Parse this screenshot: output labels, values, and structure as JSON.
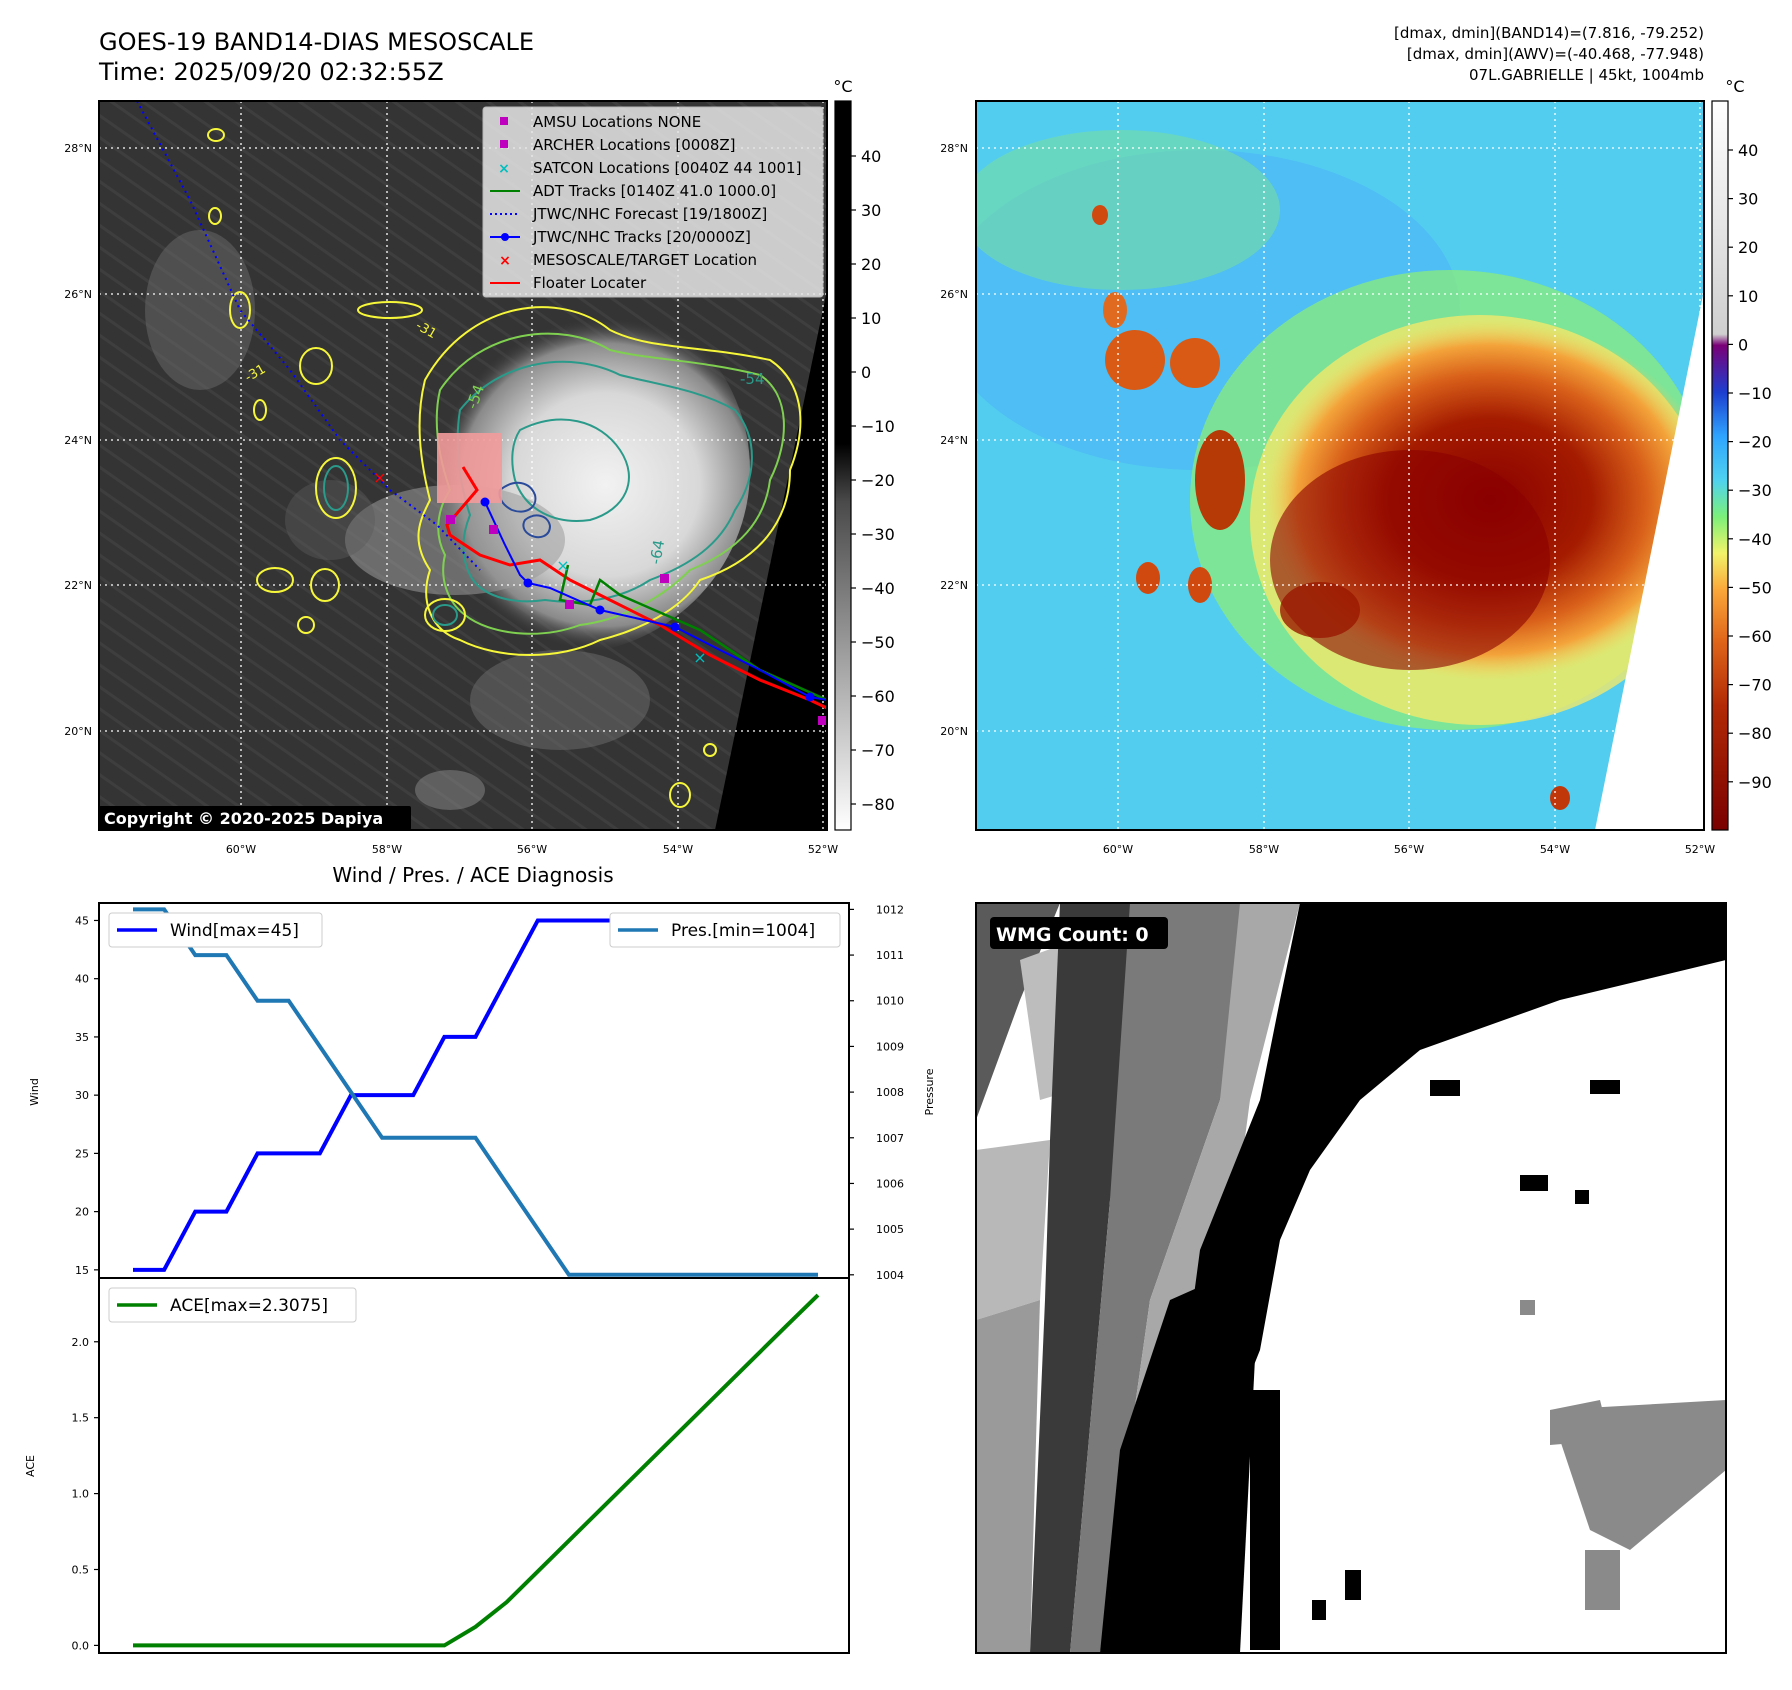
{
  "header": {
    "title": "GOES-19 BAND14-DIAS MESOSCALE",
    "time": "Time: 2025/09/20 02:32:55Z",
    "stats": [
      "[dmax, dmin](BAND14)=(7.816, -79.252)",
      "[dmax, dmin](AWV)=(-40.468, -77.948)",
      "07L.GABRIELLE | 45kt, 1004mb"
    ]
  },
  "map": {
    "lat_ticks": [
      "28°N",
      "26°N",
      "24°N",
      "22°N",
      "20°N"
    ],
    "lon_ticks": [
      "60°W",
      "58°W",
      "56°W",
      "54°W",
      "52°W"
    ],
    "copyright": "Copyright © 2020-2025 Dapiya",
    "legend": [
      {
        "label": "AMSU Locations NONE",
        "symbol": "square",
        "color": "#bf00bf"
      },
      {
        "label": "ARCHER Locations [0008Z]",
        "symbol": "square",
        "color": "#bf00bf"
      },
      {
        "label": "SATCON Locations [0040Z 44 1001]",
        "symbol": "x",
        "color": "#00bfbf"
      },
      {
        "label": "ADT Tracks [0140Z 41.0 1000.0]",
        "symbol": "line",
        "color": "#008000"
      },
      {
        "label": "JTWC/NHC Forecast [19/1800Z]",
        "symbol": "dotted",
        "color": "#0000ff"
      },
      {
        "label": "JTWC/NHC Tracks [20/0000Z]",
        "symbol": "line-dot",
        "color": "#0000ff"
      },
      {
        "label": "MESOSCALE/TARGET Location",
        "symbol": "x",
        "color": "#ff0000"
      },
      {
        "label": "Floater Locater",
        "symbol": "line",
        "color": "#ff0000"
      }
    ],
    "contour_labels": [
      "-54",
      "-54",
      "-64",
      "-31",
      "-31"
    ],
    "colorbar_gray": {
      "unit": "°C",
      "ticks": [
        "40",
        "30",
        "20",
        "10",
        "0",
        "−10",
        "−20",
        "−30",
        "−40",
        "−50",
        "−60",
        "−70",
        "−80"
      ]
    },
    "colorbar_color": {
      "unit": "°C",
      "ticks": [
        "40",
        "30",
        "20",
        "10",
        "0",
        "−10",
        "−20",
        "−30",
        "−40",
        "−50",
        "−60",
        "−70",
        "−80",
        "−90"
      ]
    }
  },
  "wmg": {
    "label": "WMG Count: 0"
  },
  "chart_data": [
    {
      "type": "line",
      "title": "Wind / Pres. / ACE Diagnosis",
      "ylabel": "Wind",
      "y2label": "Pressure",
      "ylim": [
        14.3,
        46.5
      ],
      "y2lim": [
        1003.93,
        1012.14
      ],
      "yticks": [
        15,
        20,
        25,
        30,
        35,
        40,
        45
      ],
      "y2ticks": [
        1004,
        1005,
        1006,
        1007,
        1008,
        1009,
        1010,
        1011,
        1012
      ],
      "x": [
        0,
        1,
        2,
        3,
        4,
        5,
        6,
        7,
        8,
        9,
        10,
        11,
        12,
        13,
        14,
        15,
        16,
        17,
        18,
        19,
        20,
        21,
        22
      ],
      "series": [
        {
          "name": "Wind[max=45]",
          "color": "#0000ff",
          "axis": "left",
          "values": [
            15,
            15,
            20,
            20,
            25,
            25,
            25,
            30,
            30,
            30,
            35,
            35,
            40,
            45,
            45,
            45,
            45,
            45,
            45,
            45,
            45,
            45,
            45
          ]
        },
        {
          "name": "Pres.[min=1004]",
          "color": "#1f77b4",
          "axis": "right",
          "values": [
            1012,
            1012,
            1011,
            1011,
            1010,
            1010,
            1009,
            1008,
            1007,
            1007,
            1007,
            1007,
            1006,
            1005,
            1004,
            1004,
            1004,
            1004,
            1004,
            1004,
            1004,
            1004,
            1004
          ]
        }
      ]
    },
    {
      "type": "line",
      "title": "",
      "ylabel": "ACE",
      "ylim": [
        -0.05,
        2.42
      ],
      "yticks": [
        "0.0",
        "0.5",
        "1.0",
        "1.5",
        "2.0"
      ],
      "x": [
        0,
        1,
        2,
        3,
        4,
        5,
        6,
        7,
        8,
        9,
        10,
        11,
        12,
        13,
        14,
        15,
        16,
        17,
        18,
        19,
        20,
        21,
        22
      ],
      "series": [
        {
          "name": "ACE[max=2.3075]",
          "color": "#008000",
          "axis": "left",
          "values": [
            0,
            0,
            0,
            0,
            0,
            0,
            0,
            0,
            0,
            0,
            0,
            0.1225,
            0.285,
            0.4875,
            0.69,
            0.8925,
            1.095,
            1.2975,
            1.5,
            1.7025,
            1.905,
            2.1075,
            2.3075
          ]
        }
      ]
    }
  ]
}
